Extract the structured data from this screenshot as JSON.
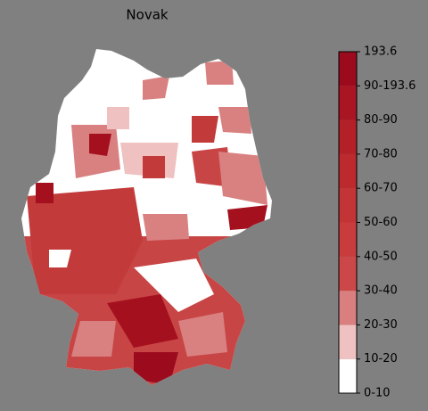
{
  "title": "Novak",
  "colorbar": {
    "labels": [
      "0-10",
      "10-20",
      "20-30",
      "30-40",
      "40-50",
      "50-60",
      "60-70",
      "70-80",
      "80-90",
      "90-193.6",
      "193.6"
    ],
    "colors": [
      "#ffffff",
      "#efc1c1",
      "#d97f7f",
      "#cc4848",
      "#c83c3c",
      "#c23435",
      "#bc2a2e",
      "#b42028",
      "#aa1523",
      "#9c0a1e"
    ]
  }
}
